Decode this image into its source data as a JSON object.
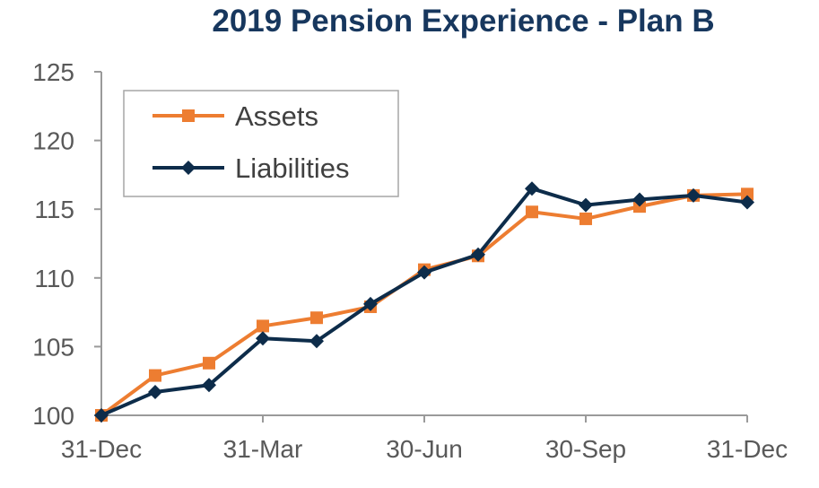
{
  "chart_data": {
    "type": "line",
    "title": "2019 Pension Experience - Plan B",
    "xlabel": "",
    "ylabel": "",
    "ylim": [
      100,
      125
    ],
    "yticks": [
      100,
      105,
      110,
      115,
      120,
      125
    ],
    "x_tick_labels": [
      "31-Dec",
      "31-Mar",
      "30-Jun",
      "30-Sep",
      "31-Dec"
    ],
    "x_tick_index": [
      0,
      3,
      6,
      9,
      12
    ],
    "grid": false,
    "legend_position": "top-left",
    "series": [
      {
        "name": "Assets",
        "color": "#ed7d31",
        "marker": "square",
        "values": [
          100.0,
          102.9,
          103.8,
          106.5,
          107.1,
          107.9,
          110.6,
          111.6,
          114.8,
          114.3,
          115.2,
          116.0,
          116.1
        ]
      },
      {
        "name": "Liabilities",
        "color": "#0d2c4a",
        "marker": "diamond",
        "values": [
          100.0,
          101.7,
          102.2,
          105.6,
          105.4,
          108.1,
          110.4,
          111.7,
          116.5,
          115.3,
          115.7,
          116.0,
          115.5
        ]
      }
    ]
  }
}
